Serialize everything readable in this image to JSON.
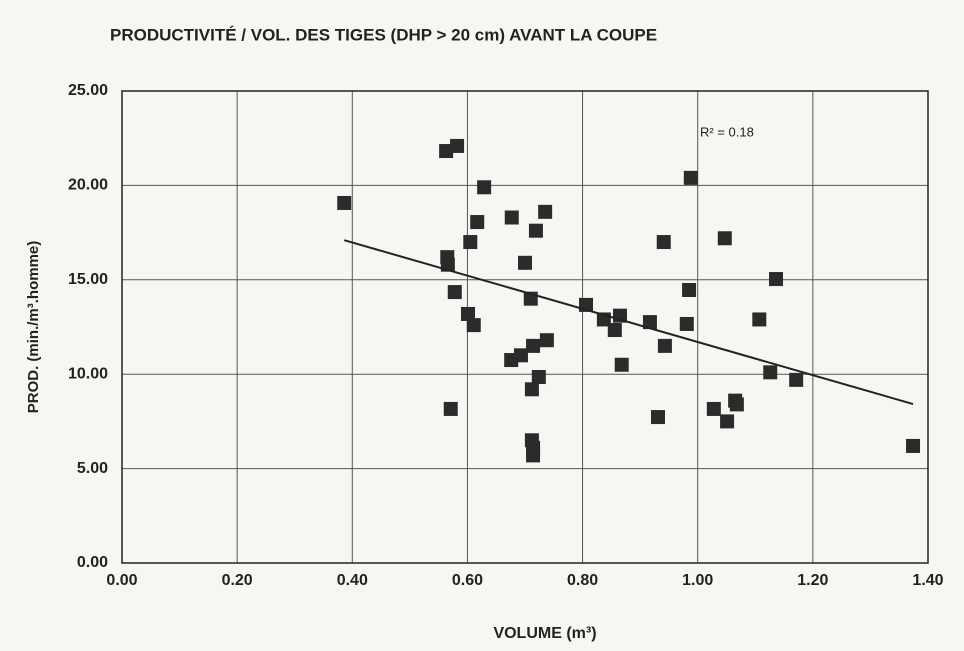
{
  "chart_data": {
    "type": "scatter",
    "title": "PRODUCTIVITÉ / VOL. DES TIGES (DHP > 20 cm) AVANT LA COUPE",
    "x_label": "VOLUME (m³)",
    "y_label": "PROD. (min./m³.homme)",
    "annotation": "R² = 0.18",
    "color": "#2b2b2b",
    "grid": true,
    "xlim": [
      0,
      1.4
    ],
    "ylim": [
      0,
      25
    ],
    "xticks": [
      {
        "value": 0,
        "label": "0.00"
      },
      {
        "value": 0.2,
        "label": "0.20"
      },
      {
        "value": 0.4,
        "label": "0.40"
      },
      {
        "value": 0.6,
        "label": "0.60"
      },
      {
        "value": 0.8,
        "label": "0.80"
      },
      {
        "value": 1.0,
        "label": "1.00"
      },
      {
        "value": 1.2,
        "label": "1.20"
      },
      {
        "value": 1.4,
        "label": "1.40"
      }
    ],
    "yticks": [
      {
        "value": 0,
        "label": "0.00"
      },
      {
        "value": 5,
        "label": "5.00"
      },
      {
        "value": 10,
        "label": "10.00"
      },
      {
        "value": 15,
        "label": "15.00"
      },
      {
        "value": 20,
        "label": "20.00"
      },
      {
        "value": 25,
        "label": "25.00"
      }
    ],
    "x": [
      0.386,
      0.563,
      0.582,
      0.565,
      0.566,
      0.578,
      0.571,
      0.605,
      0.601,
      0.611,
      0.617,
      0.629,
      0.677,
      0.735,
      0.719,
      0.7,
      0.71,
      0.676,
      0.693,
      0.714,
      0.738,
      0.724,
      0.712,
      0.712,
      0.714,
      0.714,
      0.806,
      0.837,
      0.856,
      0.865,
      0.868,
      0.917,
      0.931,
      0.941,
      0.943,
      0.988,
      0.985,
      0.981,
      1.047,
      1.028,
      1.051,
      1.065,
      1.068,
      1.107,
      1.126,
      1.136,
      1.171,
      1.374
    ],
    "values": [
      19.07,
      21.82,
      22.09,
      16.2,
      15.8,
      14.35,
      8.16,
      17.0,
      13.19,
      12.6,
      18.06,
      19.9,
      18.3,
      18.6,
      17.6,
      15.9,
      14.0,
      10.75,
      11.0,
      11.5,
      11.8,
      9.85,
      9.2,
      6.5,
      6.1,
      5.7,
      13.67,
      12.9,
      12.34,
      13.1,
      10.5,
      12.76,
      7.73,
      17.0,
      11.5,
      20.4,
      14.46,
      12.66,
      17.2,
      8.16,
      7.5,
      8.6,
      8.4,
      12.9,
      10.1,
      15.04,
      9.7,
      6.2
    ],
    "trendline": {
      "x": [
        0.386,
        1.374
      ],
      "values": [
        17.1,
        8.42
      ]
    }
  }
}
